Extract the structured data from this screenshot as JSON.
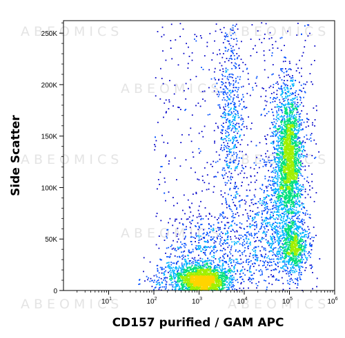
{
  "chart_data": {
    "type": "scatter",
    "subtype": "flow-cytometry-density-dot-plot",
    "xlabel": "CD157 purified / GAM APC",
    "ylabel": "Side Scatter",
    "x_scale": "log",
    "xlim": [
      1,
      1000000
    ],
    "ylim": [
      0,
      262144
    ],
    "x_ticks": [
      {
        "value": 10,
        "base": "10",
        "exp": "1"
      },
      {
        "value": 100,
        "base": "10",
        "exp": "2"
      },
      {
        "value": 1000,
        "base": "10",
        "exp": "3"
      },
      {
        "value": 10000,
        "base": "10",
        "exp": "4"
      },
      {
        "value": 100000,
        "base": "10",
        "exp": "5"
      },
      {
        "value": 1000000,
        "base": "10",
        "exp": "6"
      }
    ],
    "y_ticks": [
      {
        "value": 0,
        "label": "0"
      },
      {
        "value": 50000,
        "label": "50K"
      },
      {
        "value": 100000,
        "label": "100K"
      },
      {
        "value": 150000,
        "label": "150K"
      },
      {
        "value": 200000,
        "label": "200K"
      },
      {
        "value": 250000,
        "label": "250K"
      }
    ],
    "color_scale": [
      "#0000c8",
      "#0050ff",
      "#00b4ff",
      "#00e07a",
      "#a0f000",
      "#ffd400",
      "#ff7a00",
      "#e00000"
    ],
    "populations": [
      {
        "center_x": 1200,
        "center_y": 10000,
        "spread_log_x": 0.28,
        "spread_y": 7000,
        "events": 2200
      },
      {
        "center_x": 300,
        "center_y": 12000,
        "spread_log_x": 0.35,
        "spread_y": 9000,
        "events": 250
      },
      {
        "center_x": 5000,
        "center_y": 170000,
        "spread_log_x": 0.15,
        "spread_y": 40000,
        "events": 500
      },
      {
        "center_x": 90000,
        "center_y": 125000,
        "spread_log_x": 0.18,
        "spread_y": 40000,
        "events": 2000
      },
      {
        "center_x": 100000,
        "center_y": 130000,
        "spread_log_x": 0.08,
        "spread_y": 22000,
        "events": 700
      },
      {
        "center_x": 120000,
        "center_y": 42000,
        "spread_log_x": 0.15,
        "spread_y": 12000,
        "events": 700
      },
      {
        "center_x": 40000,
        "center_y": 60000,
        "spread_log_x": 0.35,
        "spread_y": 30000,
        "events": 500
      },
      {
        "center_x": 5000,
        "center_y": 40000,
        "spread_log_x": 0.5,
        "spread_y": 25000,
        "events": 350
      },
      {
        "center_x": 1000,
        "center_y": 40000,
        "spread_log_x": 0.4,
        "spread_y": 20000,
        "events": 300
      }
    ]
  },
  "watermark": {
    "text": "ABEOMICS"
  }
}
